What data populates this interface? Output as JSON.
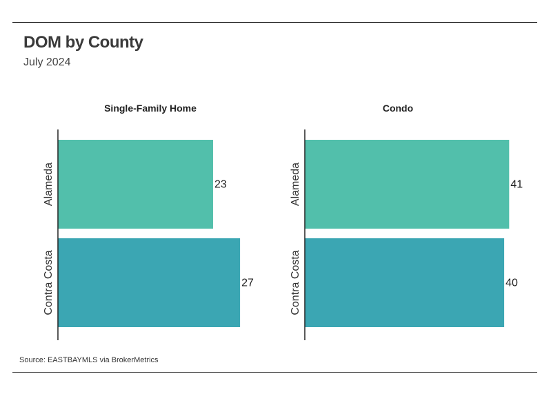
{
  "header": {
    "title": "DOM by County",
    "subtitle": "July 2024"
  },
  "footer": {
    "source": "Source:  EASTBAYMLS via BrokerMetrics"
  },
  "colors": {
    "series_1": "#52bfab",
    "series_2": "#3ba6b3",
    "axis": "#222222"
  },
  "chart_data": [
    {
      "type": "bar",
      "orientation": "horizontal",
      "title": "Single-Family Home",
      "categories": [
        "Alameda",
        "Contra Costa"
      ],
      "values": [
        23,
        27
      ],
      "xlim": [
        0,
        32
      ]
    },
    {
      "type": "bar",
      "orientation": "horizontal",
      "title": "Condo",
      "categories": [
        "Alameda",
        "Contra Costa"
      ],
      "values": [
        41,
        40
      ],
      "xlim": [
        0,
        44
      ]
    }
  ]
}
